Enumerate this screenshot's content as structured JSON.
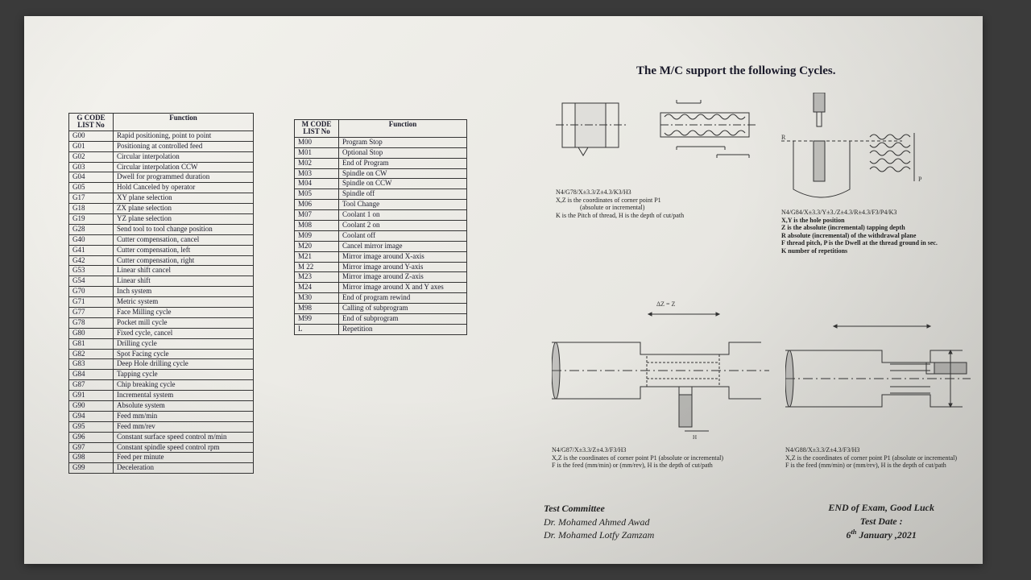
{
  "gcode": {
    "header": [
      "G CODE\nLIST No",
      "Function"
    ],
    "rows": [
      [
        "G00",
        "Rapid positioning, point to point"
      ],
      [
        "G01",
        "Positioning at controlled feed"
      ],
      [
        "G02",
        "Circular interpolation"
      ],
      [
        "G03",
        "Circular interpolation CCW"
      ],
      [
        "G04",
        "Dwell for programmed duration"
      ],
      [
        "G05",
        "Hold Canceled by operator"
      ],
      [
        "G17",
        "XY plane selection"
      ],
      [
        "G18",
        "ZX plane  selection"
      ],
      [
        "G19",
        "YZ plane selection"
      ],
      [
        "G28",
        "Send tool to tool change position"
      ],
      [
        "G40",
        "Cutter  compensation, cancel"
      ],
      [
        "G41",
        "Cutter  compensation, left"
      ],
      [
        "G42",
        "Cutter  compensation, right"
      ],
      [
        "G53",
        "Linear shift cancel"
      ],
      [
        "G54",
        "Linear shift"
      ],
      [
        "G70",
        "Inch system"
      ],
      [
        "G71",
        "Metric system"
      ],
      [
        "G77",
        "Face Milling cycle"
      ],
      [
        "G78",
        "Pocket mill cycle"
      ],
      [
        "G80",
        "Fixed cycle, cancel"
      ],
      [
        "G81",
        "Drilling cycle"
      ],
      [
        "G82",
        "Spot Facing cycle"
      ],
      [
        "G83",
        "Deep Hole drilling cycle"
      ],
      [
        "G84",
        "Tapping cycle"
      ],
      [
        "G87",
        "Chip breaking cycle"
      ],
      [
        "G91",
        "Incremental system"
      ],
      [
        "G90",
        " Absolute system"
      ],
      [
        "G94",
        "Feed mm/min"
      ],
      [
        "G95",
        "Feed mm/rev"
      ],
      [
        "G96",
        "Constant surface speed control m/min"
      ],
      [
        "G97",
        "Constant spindle speed control rpm"
      ],
      [
        "G98",
        "Feed per minute"
      ],
      [
        "G99",
        "Deceleration"
      ]
    ]
  },
  "mcode": {
    "header": [
      "M CODE\nLIST No",
      "Function"
    ],
    "rows": [
      [
        "M00",
        "Program Stop"
      ],
      [
        "M01",
        "Optional Stop"
      ],
      [
        "M02",
        "End of Program"
      ],
      [
        "M03",
        "Spindle on CW"
      ],
      [
        "M04",
        "Spindle on CCW"
      ],
      [
        "M05",
        "Spindle off"
      ],
      [
        "M06",
        "Tool Change"
      ],
      [
        "M07",
        "Coolant 1 on"
      ],
      [
        "M08",
        "Coolant 2 on"
      ],
      [
        "M09",
        "Coolant off"
      ],
      [
        "M20",
        "Cancel mirror image"
      ],
      [
        "M21",
        "Mirror image around X-axis"
      ],
      [
        "M 22",
        "Mirror image around Y-axis"
      ],
      [
        "M23",
        "Mirror image around Z-axis"
      ],
      [
        "M24",
        "Mirror image around X and Y axes"
      ],
      [
        "M30",
        "End of program rewind"
      ],
      [
        "M98",
        "Calling of subprogram"
      ],
      [
        "M99",
        "End of  subprogram"
      ],
      [
        "L",
        "Repetition"
      ]
    ]
  },
  "cycles_title": "The M/C support the following Cycles.",
  "d1": {
    "code": "N4/G78/X±3.3/Z±4.3/K3/H3",
    "l1": "X,Z is the coordinates of corner point P1",
    "l2": "(absolute or incremental)",
    "l3": "K is the Pitch of thread, H is the depth of cut/path"
  },
  "d2": {
    "code": "N4/G84/X±3.3/Y±3./Z±4.3/R±4.3/F3/P4/K3",
    "l1": "X,Y is the hole position",
    "l2": "Z is the absolute (incremental) tapping depth",
    "l3": "R absolute (incremental)  of the withdrawal plane",
    "l4": "F thread pitch, P is the Dwell at the thread ground in sec.",
    "l5": "K number of repetitions"
  },
  "d3": {
    "code": "N4/G87/X±3.3/Z±4.3/F3/H3",
    "l1": "X,Z  is the coordinates of corner point P1 (absolute or incremental)",
    "l2": "F is the feed (mm/min) or (mm/rev), H is the depth of cut/path"
  },
  "d4": {
    "code": "N4/G88/X±3.3/Z±4.3/F3/H3",
    "l1": "X,Z  is the coordinates of corner point P1 (absolute or incremental)",
    "l2": "F is the feed (mm/min) or (mm/rev), H is the depth of cut/path"
  },
  "footer": {
    "committee_title": "Test Committee",
    "committee1": "Dr. Mohamed Ahmed Awad",
    "committee2": "Dr. Mohamed Lotfy Zamzam",
    "end": "END of Exam, Good Luck",
    "testdate_label": "Test Date :",
    "testdate": "6th January ,2021"
  },
  "style": {
    "font_body": "Times New Roman",
    "font_size_table": 9,
    "font_size_title": 15,
    "font_size_caption": 8,
    "font_size_footer": 12,
    "ink": "#1a1a2a",
    "paper_bg": "#eceae4",
    "border": "#333333"
  }
}
